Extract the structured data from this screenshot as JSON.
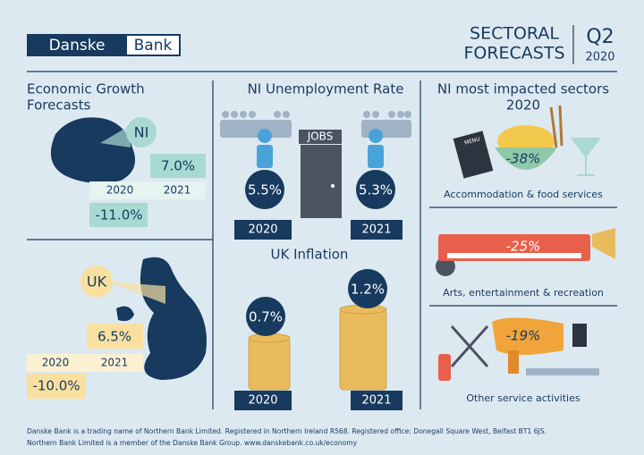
{
  "header": {
    "logo": [
      "Danske",
      "Bank"
    ],
    "title_lines": [
      "SECTORAL",
      "FORECASTS"
    ],
    "quarter": "Q2",
    "year": "2020"
  },
  "growth": {
    "title_lines": [
      "Economic Growth",
      "Forecasts"
    ],
    "ni": {
      "region": "NI",
      "years": [
        "2020",
        "2021"
      ],
      "values": [
        "-11.0%",
        "7.0%"
      ]
    },
    "uk": {
      "region": "UK",
      "years": [
        "2020",
        "2021"
      ],
      "values": [
        "-10.0%",
        "6.5%"
      ]
    }
  },
  "unemployment": {
    "title": "NI Unemployment Rate",
    "door_label": "JOBS",
    "years": [
      "2020",
      "2021"
    ],
    "values": [
      "5.5%",
      "5.3%"
    ]
  },
  "inflation": {
    "title": "UK Inflation",
    "years": [
      "2020",
      "2021"
    ],
    "values": [
      "0.7%",
      "1.2%"
    ]
  },
  "sectors": {
    "title_lines": [
      "NI most impacted sectors",
      "2020"
    ],
    "items": [
      {
        "label": "Accommodation & food services",
        "value": "-38%",
        "icon_text": "MENU"
      },
      {
        "label": "Arts, entertainment & recreation",
        "value": "-25%"
      },
      {
        "label": "Other service activities",
        "value": "-19%"
      }
    ]
  },
  "footer": {
    "lines": [
      "Danske Bank is a trading name of Northern Bank Limited. Registered in Northern Ireland R568. Registered office: Donegall Square West, Belfast BT1 6JS.",
      "Northern Bank Limited is a member of the Danske Bank Group. www.danskebank.co.uk/economy"
    ]
  }
}
